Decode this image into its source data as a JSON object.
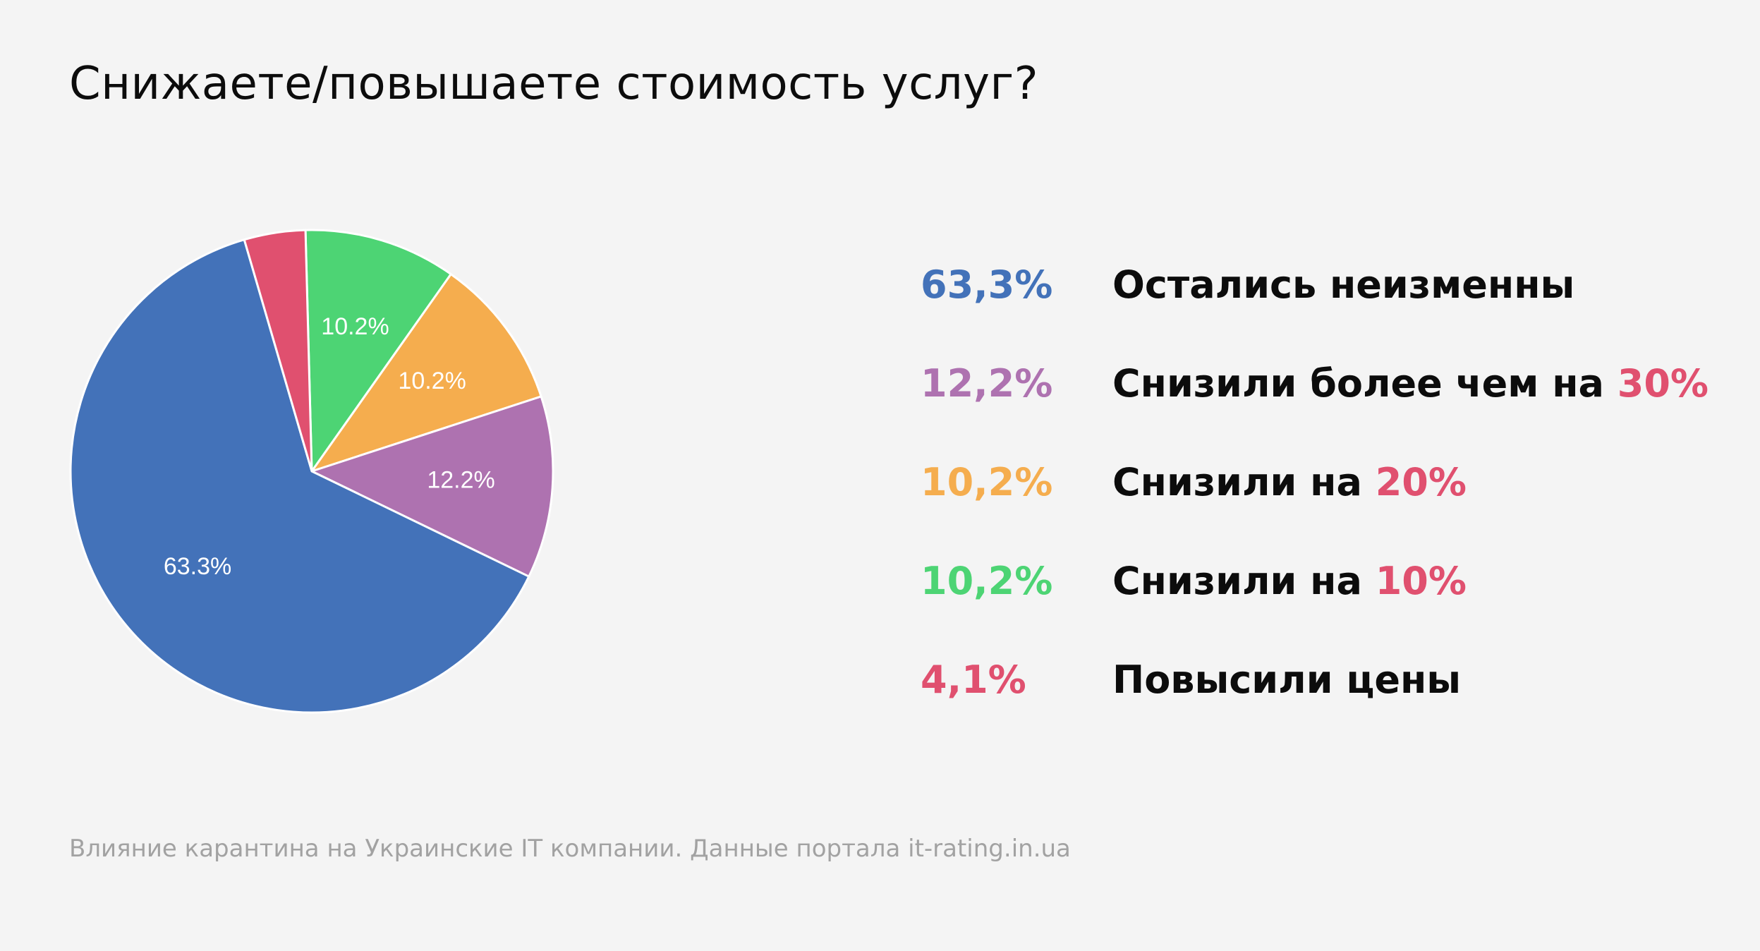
{
  "title": "Снижаете/повышаете стоимость услуг?",
  "chart_data": {
    "type": "pie",
    "start_angle_deg": -1.5,
    "direction": "clockwise",
    "slices": [
      {
        "label": "10.2%",
        "value": 10.2,
        "color": "#4dd474"
      },
      {
        "label": "10.2%",
        "value": 10.2,
        "color": "#f5ad4e"
      },
      {
        "label": "12.2%",
        "value": 12.2,
        "color": "#ae72b0"
      },
      {
        "label": "63.3%",
        "value": 63.3,
        "color": "#4372b9"
      },
      {
        "label": "",
        "value": 4.1,
        "color": "#e0506f"
      }
    ]
  },
  "legend": [
    {
      "percent": "63,3%",
      "color": "#4372b9",
      "text": "Остались неизменны",
      "highlight": ""
    },
    {
      "percent": "12,2%",
      "color": "#ae72b0",
      "text": "Снизили более чем на ",
      "highlight": "30%"
    },
    {
      "percent": "10,2%",
      "color": "#f5ad4e",
      "text": "Снизили на ",
      "highlight": "20%"
    },
    {
      "percent": "10,2%",
      "color": "#4dd474",
      "text": "Снизили на ",
      "highlight": "10%"
    },
    {
      "percent": "4,1%",
      "color": "#e0506f",
      "text": "Повысили цены",
      "highlight": ""
    }
  ],
  "footer": "Влияние карантина на Украинские IT компании. Данные портала it-rating.in.ua"
}
